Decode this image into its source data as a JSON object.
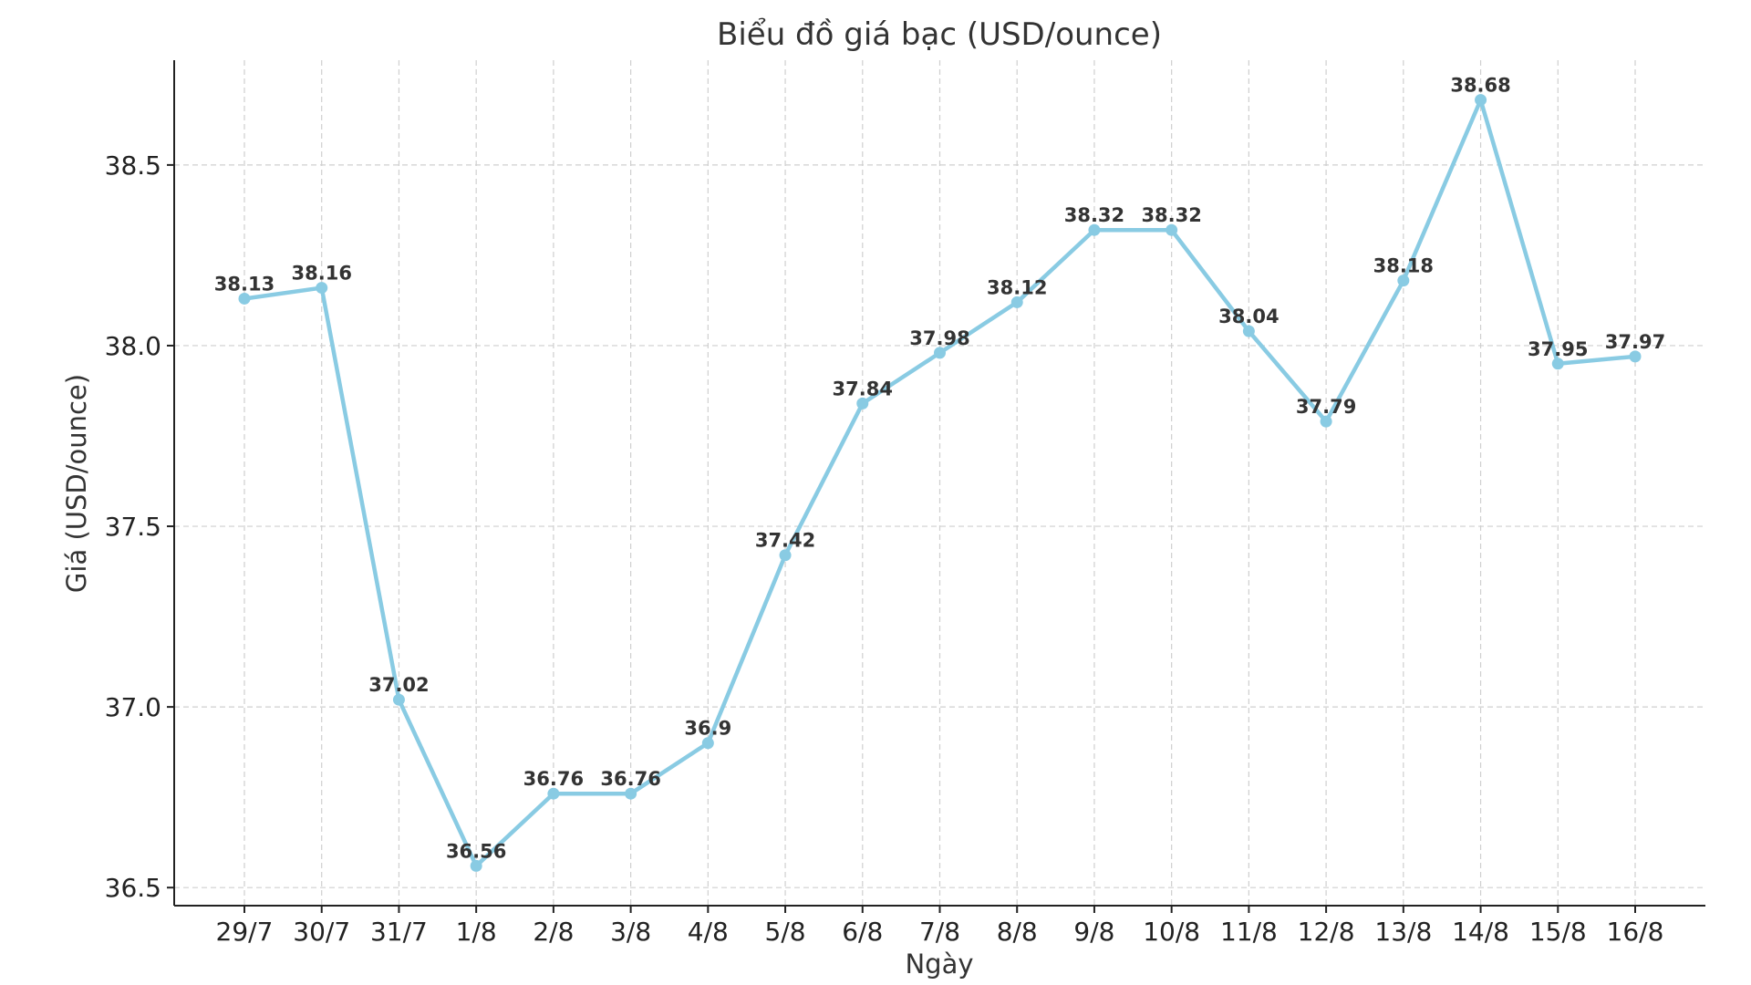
{
  "chart_data": {
    "type": "line",
    "title": "Biểu đồ giá bạc (USD/ounce)",
    "xlabel": "Ngày",
    "ylabel": "Giá (USD/ounce)",
    "categories": [
      "29/7",
      "30/7",
      "31/7",
      "1/8",
      "2/8",
      "3/8",
      "4/8",
      "5/8",
      "6/8",
      "7/8",
      "8/8",
      "9/8",
      "10/8",
      "11/8",
      "12/8",
      "13/8",
      "14/8",
      "15/8",
      "16/8"
    ],
    "series": [
      {
        "name": "Giá bạc",
        "values": [
          38.13,
          38.16,
          37.02,
          36.56,
          36.76,
          36.76,
          36.9,
          37.42,
          37.84,
          37.98,
          38.12,
          38.32,
          38.32,
          38.04,
          37.79,
          38.18,
          38.68,
          37.95,
          37.97
        ],
        "color": "#89CBE3"
      }
    ],
    "ylim": [
      36.45,
      38.79
    ],
    "yticks": [
      "36.5",
      "37.0",
      "37.5",
      "38.0",
      "38.5"
    ],
    "grid": true
  }
}
